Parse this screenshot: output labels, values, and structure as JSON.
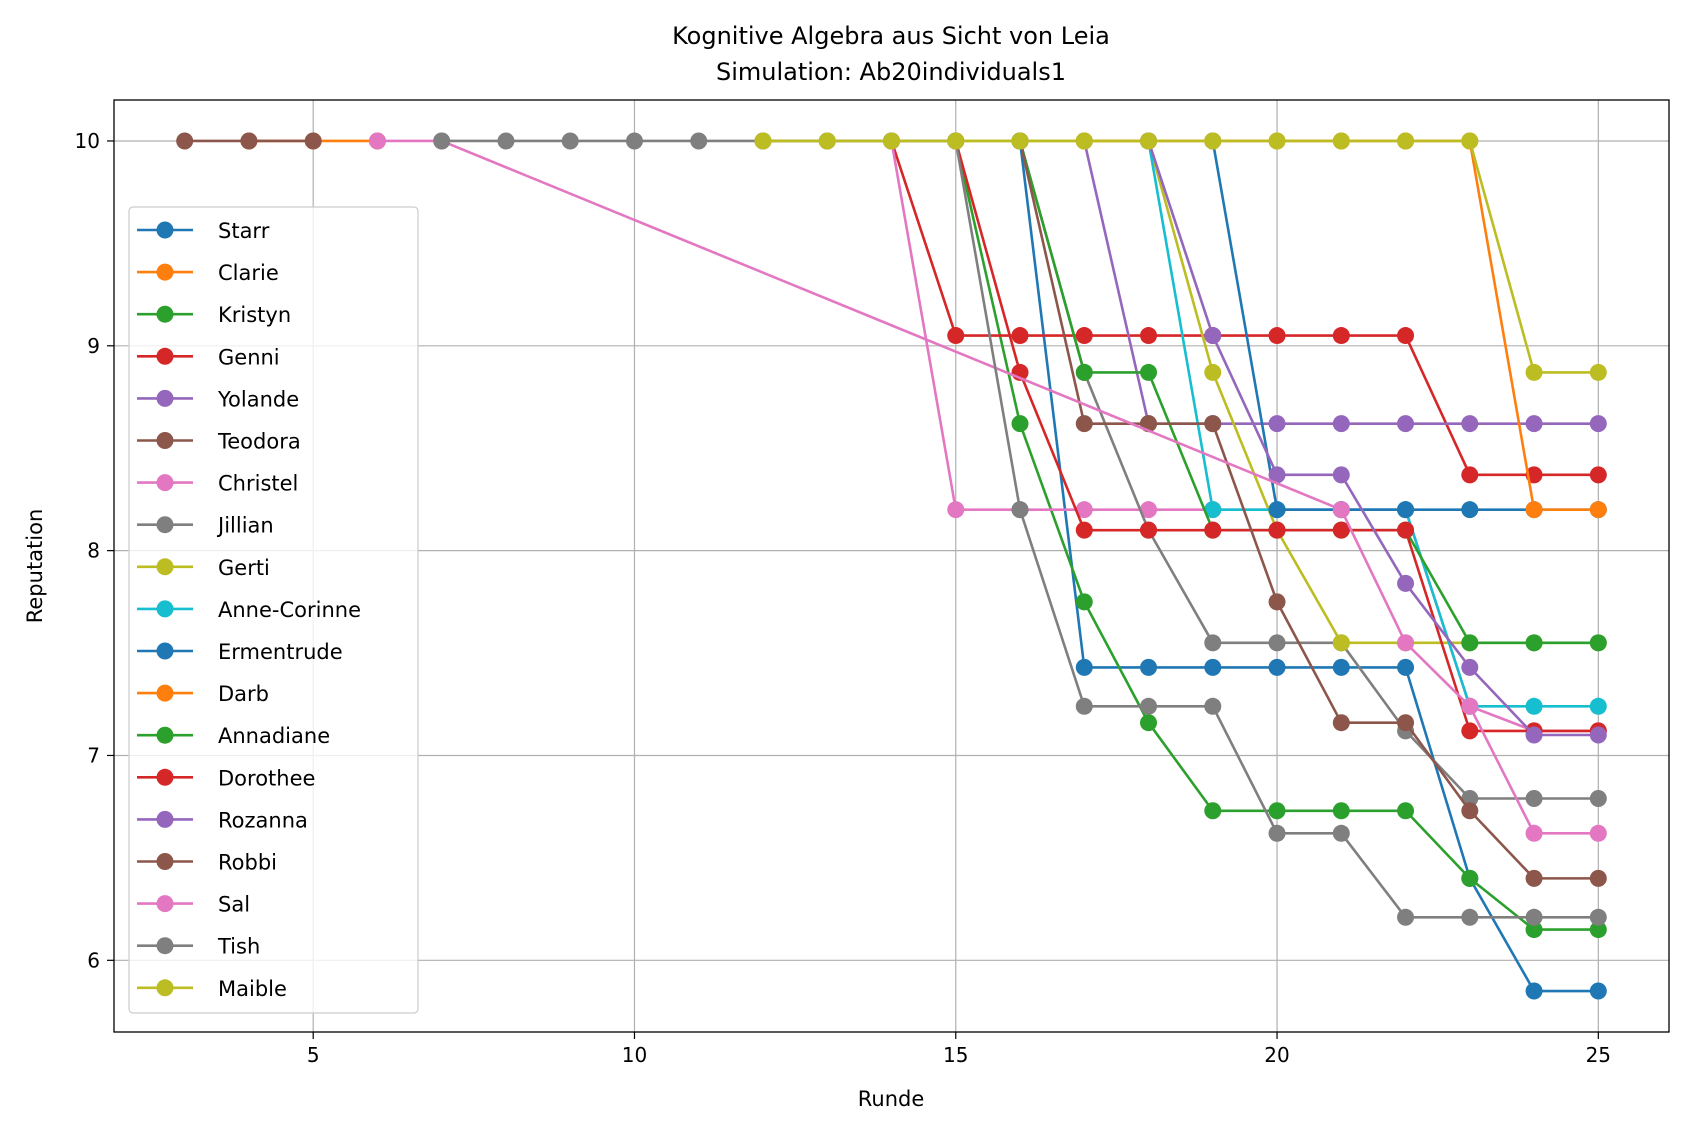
{
  "chart_data": {
    "type": "line",
    "title": "Kognitive Algebra aus Sicht von Leia",
    "subtitle": "Simulation: Ab20individuals1",
    "xlabel": "Runde",
    "ylabel": "Reputation",
    "xlim": [
      1.9,
      26.1
    ],
    "ylim": [
      5.65,
      10.2
    ],
    "xticks": [
      5,
      10,
      15,
      20,
      25
    ],
    "yticks": [
      6,
      7,
      8,
      9,
      10
    ],
    "grid": true,
    "legend_position": "center-left",
    "series": [
      {
        "name": "Starr",
        "color": "#1f77b4",
        "x": [
          16,
          17,
          18,
          19,
          20,
          21,
          22,
          23,
          24,
          25
        ],
        "y": [
          10,
          7.43,
          7.43,
          7.43,
          7.43,
          7.43,
          7.43,
          6.4,
          5.85,
          5.85
        ]
      },
      {
        "name": "Clarie",
        "color": "#ff7f0e",
        "x": [
          4,
          5,
          6
        ],
        "y": [
          10,
          10,
          10
        ]
      },
      {
        "name": "Kristyn",
        "color": "#2ca02c",
        "x": [
          15,
          16,
          17,
          18,
          19,
          20,
          21,
          22,
          23,
          24,
          25
        ],
        "y": [
          10,
          8.62,
          7.75,
          7.16,
          6.73,
          6.73,
          6.73,
          6.73,
          6.4,
          6.15,
          6.15
        ]
      },
      {
        "name": "Genni",
        "color": "#d62728",
        "x": [
          14,
          15,
          16,
          17,
          18,
          19,
          20,
          21,
          22,
          23,
          24,
          25
        ],
        "y": [
          10,
          9.05,
          9.05,
          9.05,
          9.05,
          9.05,
          9.05,
          9.05,
          9.05,
          8.37,
          8.37,
          8.37
        ]
      },
      {
        "name": "Yolande",
        "color": "#9467bd",
        "x": [
          17,
          18,
          19,
          20,
          21,
          22,
          23,
          24,
          25
        ],
        "y": [
          10,
          8.62,
          8.62,
          8.62,
          8.62,
          8.62,
          8.62,
          8.62,
          8.62
        ]
      },
      {
        "name": "Teodora",
        "color": "#8c564b",
        "x": [
          3,
          4,
          5
        ],
        "y": [
          10,
          10,
          10
        ]
      },
      {
        "name": "Christel",
        "color": "#e377c2",
        "x": [
          14,
          15,
          16,
          17,
          18,
          19,
          20,
          21,
          22,
          23,
          24,
          25
        ],
        "y": [
          10,
          8.2,
          8.2,
          8.2,
          8.2,
          8.2,
          8.2,
          8.2,
          8.2,
          7.24,
          7.12,
          7.12
        ]
      },
      {
        "name": "Jillian",
        "color": "#7f7f7f",
        "x": [
          16,
          17,
          18,
          19,
          20,
          21,
          22,
          23,
          24,
          25
        ],
        "y": [
          10,
          8.87,
          8.1,
          7.55,
          7.55,
          7.55,
          7.12,
          6.79,
          6.79,
          6.79
        ]
      },
      {
        "name": "Gerti",
        "color": "#bcbd22",
        "x": [
          12,
          13,
          14,
          15,
          16,
          17,
          18,
          19,
          20,
          21,
          22,
          23,
          24,
          25
        ],
        "y": [
          10,
          10,
          10,
          10,
          10,
          10,
          10,
          8.87,
          8.1,
          7.55,
          7.55,
          7.55,
          7.55,
          7.55
        ]
      },
      {
        "name": "Anne-Corinne",
        "color": "#17becf",
        "x": [
          18,
          19,
          20,
          21,
          22,
          23,
          24,
          25
        ],
        "y": [
          10,
          8.2,
          8.2,
          8.2,
          8.2,
          7.24,
          7.24,
          7.24
        ]
      },
      {
        "name": "Ermentrude",
        "color": "#1f77b4",
        "x": [
          19,
          20,
          21,
          22,
          23,
          24,
          25
        ],
        "y": [
          10,
          8.2,
          8.2,
          8.2,
          8.2,
          8.2,
          8.2
        ]
      },
      {
        "name": "Darb",
        "color": "#ff7f0e",
        "x": [
          17,
          18,
          19,
          20,
          21,
          22,
          23,
          24,
          25
        ],
        "y": [
          10,
          10,
          10,
          10,
          10,
          10,
          10,
          8.2,
          8.2
        ]
      },
      {
        "name": "Annadiane",
        "color": "#2ca02c",
        "x": [
          16,
          17,
          18,
          19,
          20,
          21,
          22,
          23,
          24,
          25
        ],
        "y": [
          10,
          8.87,
          8.87,
          8.1,
          8.1,
          8.1,
          8.1,
          7.55,
          7.55,
          7.55
        ]
      },
      {
        "name": "Dorothee",
        "color": "#d62728",
        "x": [
          15,
          16,
          17,
          18,
          19,
          20,
          21,
          22,
          23,
          24,
          25
        ],
        "y": [
          10,
          8.87,
          8.1,
          8.1,
          8.1,
          8.1,
          8.1,
          8.1,
          7.12,
          7.12,
          7.12
        ]
      },
      {
        "name": "Rozanna",
        "color": "#9467bd",
        "x": [
          18,
          19,
          20,
          21,
          22,
          23,
          24,
          25
        ],
        "y": [
          10,
          9.05,
          8.37,
          8.37,
          7.84,
          7.43,
          7.1,
          7.1
        ]
      },
      {
        "name": "Robbi",
        "color": "#8c564b",
        "x": [
          16,
          17,
          18,
          19,
          20,
          21,
          22,
          23,
          24,
          25
        ],
        "y": [
          10,
          8.62,
          8.62,
          8.62,
          7.75,
          7.16,
          7.16,
          6.73,
          6.4,
          6.4
        ]
      },
      {
        "name": "Sal",
        "color": "#e377c2",
        "x": [
          6,
          7,
          21,
          22,
          23,
          24,
          25
        ],
        "y": [
          10,
          10,
          8.2,
          7.55,
          7.24,
          6.62,
          6.62
        ]
      },
      {
        "name": "Tish",
        "color": "#7f7f7f",
        "x": [
          7,
          8,
          9,
          10,
          11,
          12,
          13,
          14,
          15,
          16,
          17,
          18,
          19,
          20,
          21,
          22,
          23,
          24,
          25
        ],
        "y": [
          10,
          10,
          10,
          10,
          10,
          10,
          10,
          10,
          10,
          8.2,
          7.24,
          7.24,
          7.24,
          6.62,
          6.62,
          6.21,
          6.21,
          6.21,
          6.21
        ]
      },
      {
        "name": "Maible",
        "color": "#bcbd22",
        "x": [
          12,
          13,
          14,
          15,
          16,
          17,
          18,
          19,
          20,
          21,
          22,
          23,
          24,
          25
        ],
        "y": [
          10,
          10,
          10,
          10,
          10,
          10,
          10,
          10,
          10,
          10,
          10,
          10,
          8.87,
          8.87
        ]
      }
    ]
  }
}
